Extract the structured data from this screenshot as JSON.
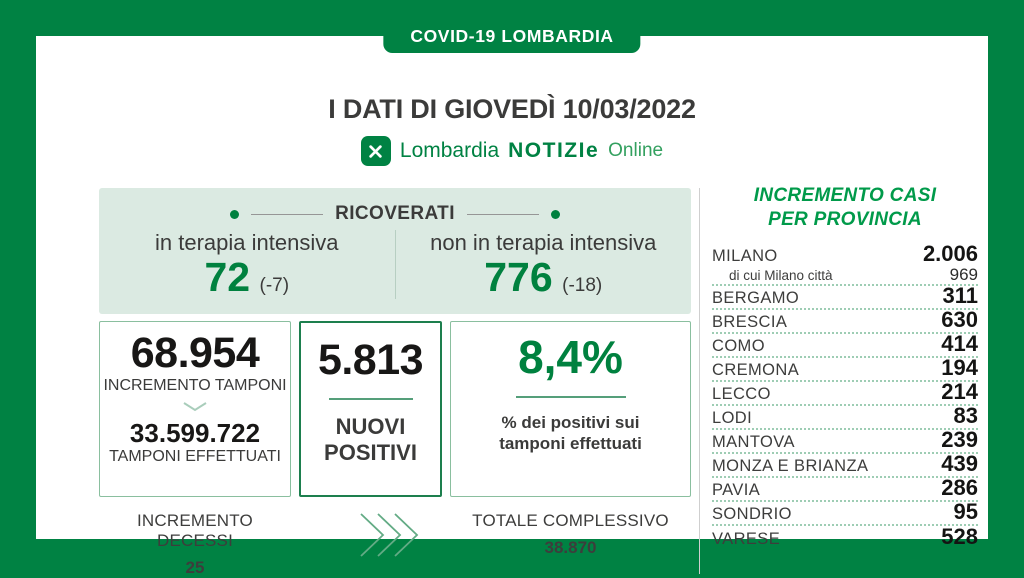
{
  "colors": {
    "brand_green": "#008243",
    "value_green": "#00813f",
    "panel_title_green": "#009a4a",
    "light_green_bg": "#dbeae2",
    "dark_text": "#3b3b3a",
    "number_black": "#181716"
  },
  "banner": {
    "label": "COVID-19 LOMBARDIA"
  },
  "header": {
    "title": "I DATI DI GIOVEDÌ 10/03/2022"
  },
  "logo": {
    "region": "Lombardia",
    "brand": "NOTIZIe",
    "suffix": "Online"
  },
  "ricoverati": {
    "title": "RICOVERATI",
    "intensive": {
      "label": "in terapia intensiva",
      "value": "72",
      "delta": "(-7)"
    },
    "non_intensive": {
      "label": "non in terapia intensiva",
      "value": "776",
      "delta": "(-18)"
    }
  },
  "stats": {
    "tamponi": {
      "increment": "68.954",
      "increment_label": "INCREMENTO TAMPONI",
      "total": "33.599.722",
      "total_label": "TAMPONI EFFETTUATI"
    },
    "nuovi_positivi": {
      "value": "5.813",
      "label": "NUOVI POSITIVI"
    },
    "percentuale": {
      "value": "8,4%",
      "label": "% dei positivi sui tamponi effettuati"
    }
  },
  "footer": {
    "decessi": {
      "label": "INCREMENTO DECESSI",
      "value": "25"
    },
    "totale": {
      "label": "TOTALE COMPLESSIVO",
      "value": "38.870"
    }
  },
  "province_panel": {
    "title_line1": "INCREMENTO CASI",
    "title_line2": "PER PROVINCIA",
    "rows": [
      {
        "name": "MILANO",
        "value": "2.006",
        "sub_name": "di cui Milano città",
        "sub_value": "969"
      },
      {
        "name": "BERGAMO",
        "value": "311"
      },
      {
        "name": "BRESCIA",
        "value": "630"
      },
      {
        "name": "COMO",
        "value": "414"
      },
      {
        "name": "CREMONA",
        "value": "194"
      },
      {
        "name": "LECCO",
        "value": "214"
      },
      {
        "name": "LODI",
        "value": "83"
      },
      {
        "name": "MANTOVA",
        "value": "239"
      },
      {
        "name": "MONZA E BRIANZA",
        "value": "439"
      },
      {
        "name": "PAVIA",
        "value": "286"
      },
      {
        "name": "SONDRIO",
        "value": "95"
      },
      {
        "name": "VARESE",
        "value": "528"
      }
    ]
  },
  "chart_data": {
    "type": "table",
    "title": "I DATI DI GIOVEDÌ 10/03/2022",
    "series_label": "Incremento casi per provincia",
    "summary": {
      "ricoverati_terapia_intensiva": 72,
      "variazione_terapia_intensiva": -7,
      "ricoverati_non_terapia_intensiva": 776,
      "variazione_non_terapia_intensiva": -18,
      "incremento_tamponi": 68954,
      "tamponi_effettuati": 33599722,
      "nuovi_positivi": 5813,
      "percentuale_positivi_su_tamponi": 8.4,
      "incremento_decessi": 25,
      "totale_complessivo_decessi": 38870
    },
    "categories": [
      "MILANO",
      "MILANO di cui Milano città",
      "BERGAMO",
      "BRESCIA",
      "COMO",
      "CREMONA",
      "LECCO",
      "LODI",
      "MANTOVA",
      "MONZA E BRIANZA",
      "PAVIA",
      "SONDRIO",
      "VARESE"
    ],
    "values": [
      2006,
      969,
      311,
      630,
      414,
      194,
      214,
      83,
      239,
      439,
      286,
      95,
      528
    ]
  }
}
